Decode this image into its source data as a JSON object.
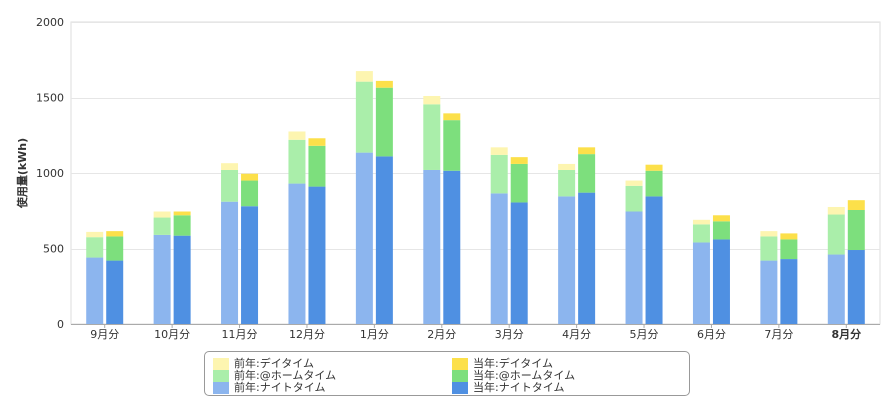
{
  "chart_data": {
    "type": "bar",
    "stacked": true,
    "grouped": true,
    "ylabel": "使用量(kWh)",
    "ylim": [
      0,
      2000
    ],
    "yticks": [
      0,
      500,
      1000,
      1500,
      2000
    ],
    "categories": [
      "9月分",
      "10月分",
      "11月分",
      "12月分",
      "1月分",
      "2月分",
      "3月分",
      "4月分",
      "5月分",
      "6月分",
      "7月分",
      "8月分"
    ],
    "highlighted_category": "8月分",
    "grid": "horizontal",
    "legend_position": "bottom",
    "groups": [
      {
        "key": "previous",
        "series": [
          {
            "name": "前年:ナイトタイム",
            "color": "#8cb5ee",
            "values": [
              440,
              590,
              810,
              930,
              1135,
              1020,
              865,
              845,
              745,
              540,
              420,
              460
            ]
          },
          {
            "name": "前年:@ホームタイム",
            "color": "#aaeeaa",
            "values": [
              135,
              115,
              210,
              290,
              470,
              435,
              255,
              175,
              170,
              120,
              160,
              265
            ]
          },
          {
            "name": "前年:デイタイム",
            "color": "#fdf5b0",
            "values": [
              35,
              40,
              45,
              55,
              70,
              55,
              50,
              40,
              35,
              30,
              35,
              50
            ]
          }
        ]
      },
      {
        "key": "current",
        "series": [
          {
            "name": "当年:ナイトタイム",
            "color": "#4f90e2",
            "values": [
              420,
              585,
              780,
              910,
              1110,
              1015,
              805,
              870,
              845,
              560,
              430,
              490
            ]
          },
          {
            "name": "当年:@ホームタイム",
            "color": "#7ddf7d",
            "values": [
              160,
              135,
              170,
              270,
              455,
              335,
              255,
              255,
              170,
              120,
              130,
              265
            ]
          },
          {
            "name": "当年:デイタイム",
            "color": "#fce04a",
            "values": [
              35,
              25,
              45,
              50,
              45,
              45,
              45,
              45,
              40,
              40,
              40,
              65
            ]
          }
        ]
      }
    ]
  },
  "legend": {
    "items": [
      {
        "label": "前年:デイタイム",
        "color": "#fdf5b0"
      },
      {
        "label": "前年:@ホームタイム",
        "color": "#aaeeaa"
      },
      {
        "label": "前年:ナイトタイム",
        "color": "#8cb5ee"
      },
      {
        "label": "当年:デイタイム",
        "color": "#fce04a"
      },
      {
        "label": "当年:@ホームタイム",
        "color": "#7ddf7d"
      },
      {
        "label": "当年:ナイトタイム",
        "color": "#4f90e2"
      }
    ]
  }
}
